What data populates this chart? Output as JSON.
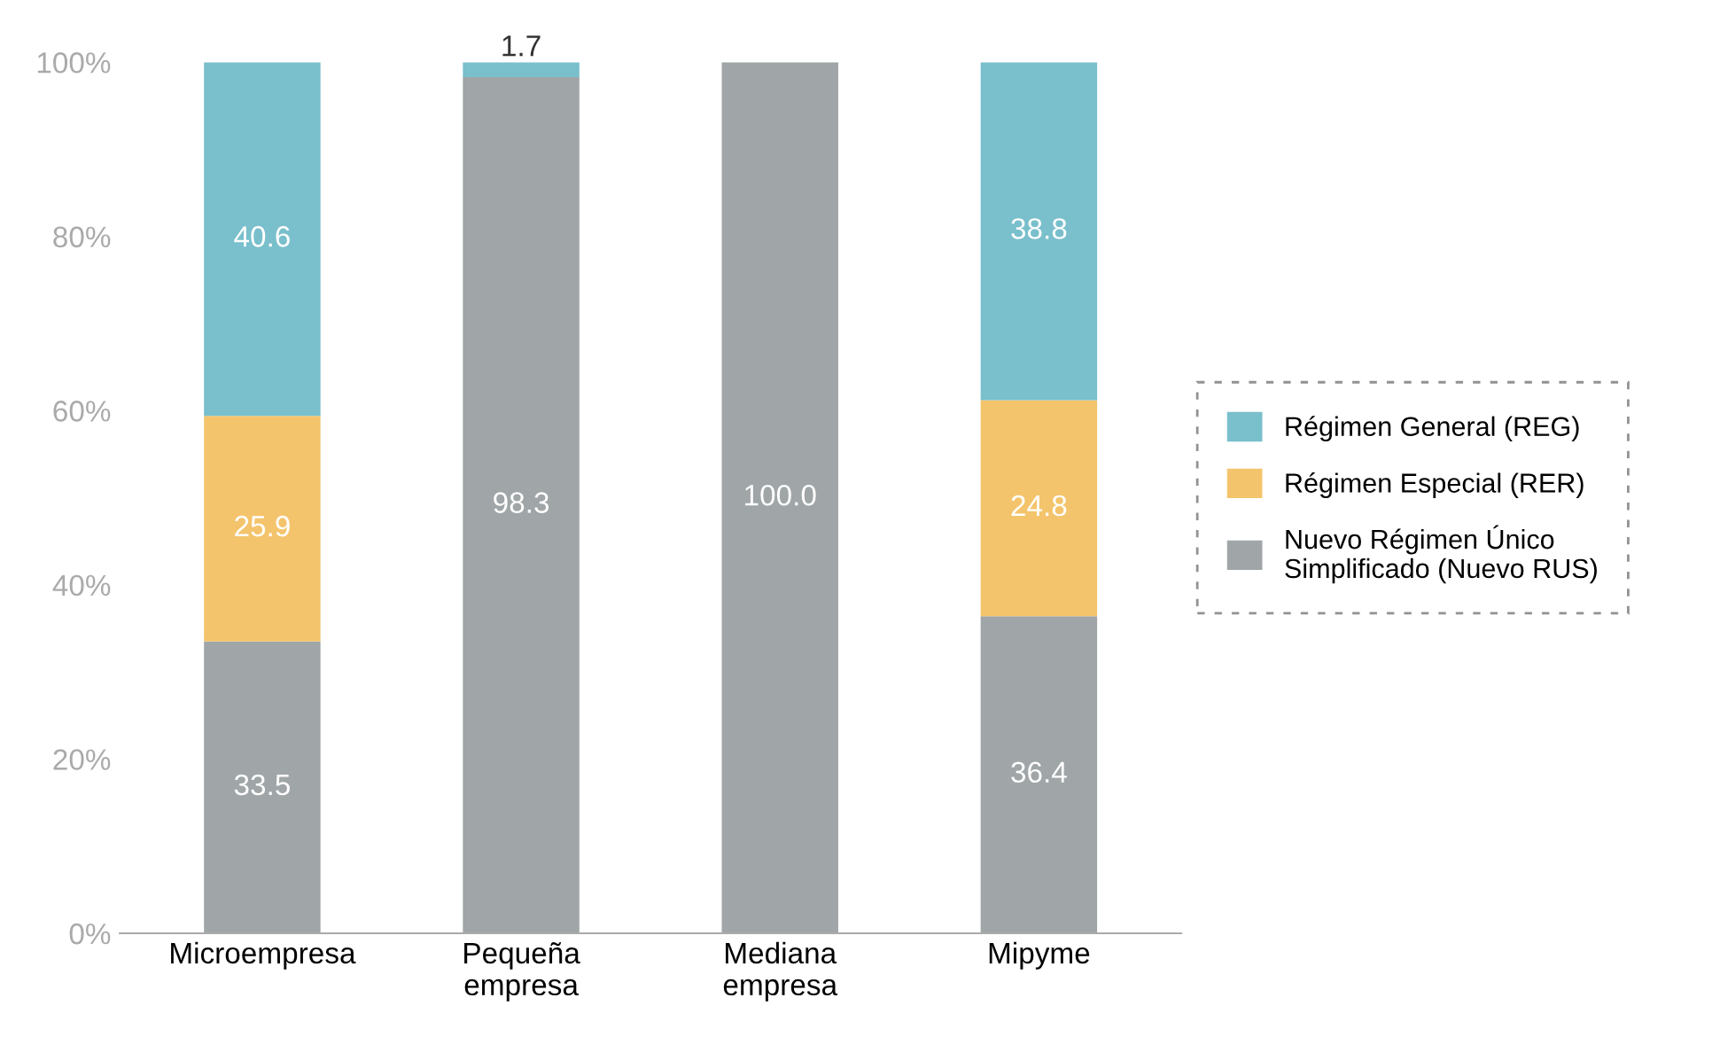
{
  "chart_data": {
    "type": "bar",
    "stacked": true,
    "categories": [
      "Microempresa",
      "Pequeña\nempresa",
      "Mediana\nempresa",
      "Mipyme"
    ],
    "series": [
      {
        "name": "Nuevo Régimen Único\nSimplificado (Nuevo RUS)",
        "color": "#a0a6a8",
        "values": [
          33.5,
          98.3,
          100.0,
          36.4
        ],
        "value_labels": [
          "33.5",
          "98.3",
          "100.0",
          "36.4"
        ]
      },
      {
        "name": "Régimen Especial (RER)",
        "color": "#f4c46c",
        "values": [
          25.9,
          null,
          null,
          24.8
        ],
        "value_labels": [
          "25.9",
          null,
          null,
          "24.8"
        ]
      },
      {
        "name": "Régimen General (REG)",
        "color": "#79bfcc",
        "values": [
          40.6,
          1.7,
          null,
          38.8
        ],
        "value_labels": [
          "40.6",
          "1.7",
          null,
          "38.8"
        ]
      }
    ],
    "ylim": [
      0,
      100
    ],
    "yticks": [
      {
        "value": 0,
        "label": "0%"
      },
      {
        "value": 20,
        "label": "20%"
      },
      {
        "value": 40,
        "label": "40%"
      },
      {
        "value": 60,
        "label": "60%"
      },
      {
        "value": 80,
        "label": "80%"
      },
      {
        "value": 100,
        "label": "100%"
      }
    ],
    "grid": false,
    "legend": "right"
  }
}
